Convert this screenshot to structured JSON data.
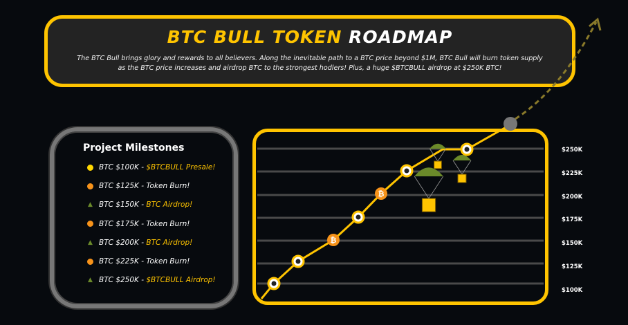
{
  "header": {
    "title_part1": "BTC BULL TOKEN",
    "title_part2": "ROADMAP",
    "description": "The BTC Bull brings glory and rewards to all believers. Along the inevitable path to a BTC price beyond $1M, BTC Bull will burn token supply as the BTC price increases and airdrop BTC to the strongest hodlers! Plus, a huge $BTCBULL airdrop at $250K BTC!"
  },
  "milestones": {
    "title": "Project Milestones",
    "items": [
      {
        "icon": "yellow-dot",
        "price": "BTC $100K - ",
        "event": "$BTCBULL Presale!",
        "highlight": true
      },
      {
        "icon": "orange-dot",
        "price": "BTC $125K - ",
        "event": " Token Burn!",
        "highlight": false
      },
      {
        "icon": "parachute",
        "price": "BTC $150K - ",
        "event": "BTC Airdrop!",
        "highlight": true
      },
      {
        "icon": "orange-dot",
        "price": "BTC $175K - ",
        "event": "Token Burn!",
        "highlight": false
      },
      {
        "icon": "parachute",
        "price": "BTC $200K - ",
        "event": "BTC Airdrop!",
        "highlight": true
      },
      {
        "icon": "orange-dot",
        "price": "BTC $225K - ",
        "event": "Token Burn!",
        "highlight": false
      },
      {
        "icon": "parachute",
        "price": "BTC $250K - ",
        "event": "$BTCBULL Airdrop!",
        "highlight": true
      }
    ]
  },
  "chart": {
    "y_labels": [
      "$250K",
      "$225K",
      "$200K",
      "$175K",
      "$150K",
      "$125K",
      "$100K"
    ]
  },
  "colors": {
    "accent": "#ffc400",
    "orange": "#f7931a",
    "background": "#070a0e"
  }
}
